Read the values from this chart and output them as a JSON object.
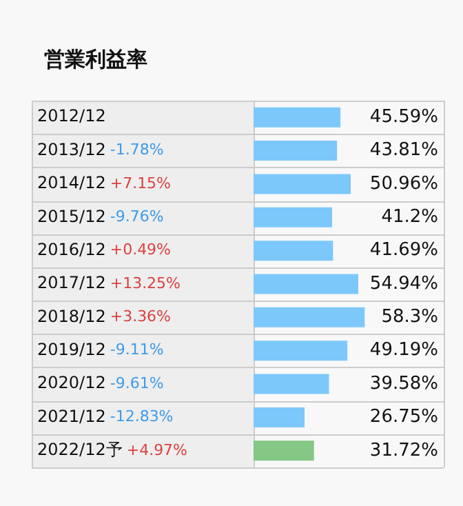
{
  "chart_data": {
    "type": "bar",
    "orientation": "horizontal",
    "title": "営業利益率",
    "categories": [
      "2012/12",
      "2013/12",
      "2014/12",
      "2015/12",
      "2016/12",
      "2017/12",
      "2018/12",
      "2019/12",
      "2020/12",
      "2021/12",
      "2022/12予"
    ],
    "values": [
      45.59,
      43.81,
      50.96,
      41.2,
      41.69,
      54.94,
      58.3,
      49.19,
      39.58,
      26.75,
      31.72
    ],
    "colors": [
      "#7cc8fb",
      "#7cc8fb",
      "#7cc8fb",
      "#7cc8fb",
      "#7cc8fb",
      "#7cc8fb",
      "#7cc8fb",
      "#7cc8fb",
      "#7cc8fb",
      "#7cc8fb",
      "#85c785"
    ],
    "value_labels": [
      "45.59%",
      "43.81%",
      "50.96%",
      "41.2%",
      "41.69%",
      "54.94%",
      "58.3%",
      "49.19%",
      "39.58%",
      "26.75%",
      "31.72%"
    ],
    "annotations": [
      "-1.78%",
      "+7.15%",
      "-9.76%",
      "+0.49%",
      "+13.25%",
      "+3.36%",
      "-9.11%",
      "-9.61%",
      "-12.83%",
      "+4.97%"
    ],
    "xlim": [
      0,
      60
    ],
    "tick_labels": "y"
  }
}
